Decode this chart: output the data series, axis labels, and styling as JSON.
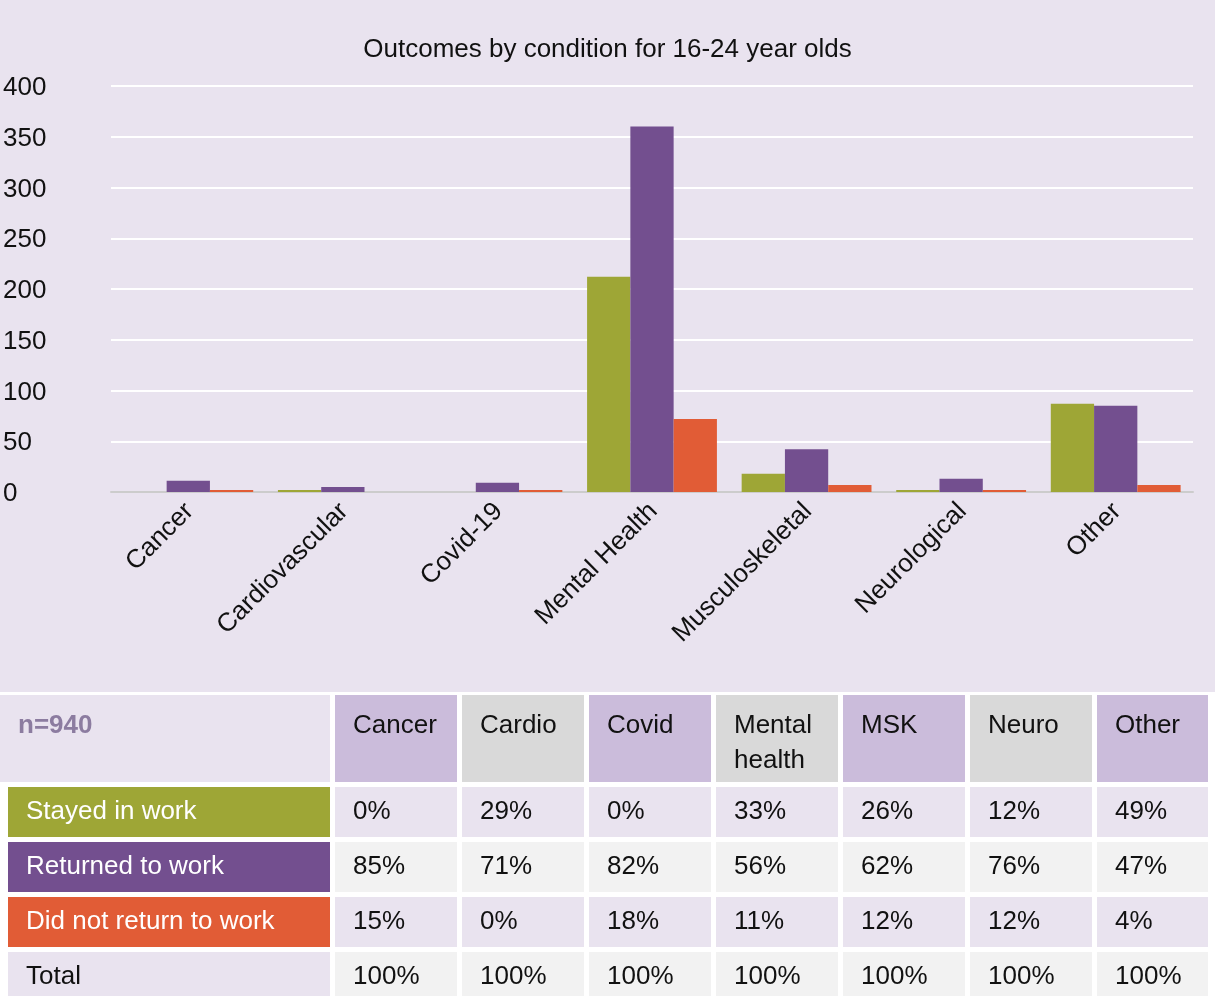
{
  "chart_data": [
    {
      "type": "bar",
      "title": "Outcomes by condition for 16-24 year olds",
      "categories": [
        "Cancer",
        "Cardiovascular",
        "Covid-19",
        "Mental Health",
        "Musculoskeletal",
        "Neurological",
        "Other"
      ],
      "series": [
        {
          "color": "#9ea636",
          "values": [
            0,
            2,
            0,
            212,
            18,
            2,
            87
          ]
        },
        {
          "color": "#734f8f",
          "values": [
            11,
            5,
            9,
            360,
            42,
            13,
            85
          ]
        },
        {
          "color": "#e15c36",
          "values": [
            2,
            0,
            2,
            72,
            7,
            2,
            7
          ]
        }
      ],
      "ylim": [
        0,
        400
      ],
      "yticks": [
        0,
        50,
        100,
        150,
        200,
        250,
        300,
        350,
        400
      ],
      "grid": "y"
    },
    {
      "type": "other",
      "title": "n=940",
      "categories": [
        "Cancer",
        "Cardio",
        "Covid",
        "Mental health",
        "MSK",
        "Neuro",
        "Other"
      ],
      "y_categories": [
        "Stayed in work",
        "Returned to work",
        "Did not return to work",
        "Total"
      ],
      "cell_labels": [
        [
          "0%",
          "29%",
          "0%",
          "33%",
          "26%",
          "12%",
          "49%"
        ],
        [
          "85%",
          "71%",
          "82%",
          "56%",
          "62%",
          "76%",
          "47%"
        ],
        [
          "15%",
          "0%",
          "18%",
          "11%",
          "12%",
          "12%",
          "4%"
        ],
        [
          "100%",
          "100%",
          "100%",
          "100%",
          "100%",
          "100%",
          "100%"
        ]
      ]
    }
  ]
}
